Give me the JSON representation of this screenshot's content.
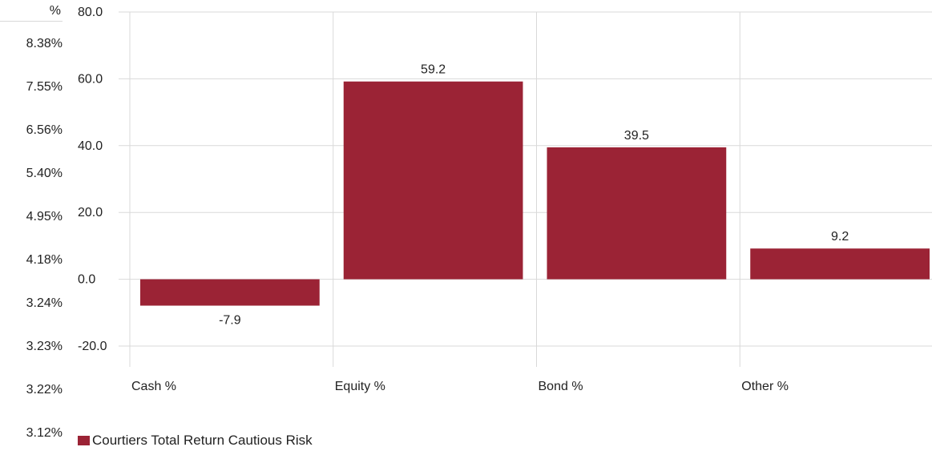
{
  "left_column": {
    "header": "%",
    "values": [
      "8.38%",
      "7.55%",
      "6.56%",
      "5.40%",
      "4.95%",
      "4.18%",
      "3.24%",
      "3.23%",
      "3.22%",
      "3.12%"
    ]
  },
  "colors": {
    "bar": "#9b2335",
    "grid": "#d9d9d9",
    "text": "#222222"
  },
  "chart_data": {
    "type": "bar",
    "categories": [
      "Cash %",
      "Equity %",
      "Bond %",
      "Other %"
    ],
    "series": [
      {
        "name": "Courtiers Total Return Cautious Risk",
        "values": [
          -7.9,
          59.2,
          39.5,
          9.2
        ]
      }
    ],
    "data_labels": [
      "-7.9",
      "59.2",
      "39.5",
      "9.2"
    ],
    "yticks": [
      "80.0",
      "60.0",
      "40.0",
      "20.0",
      "0.0",
      "-20.0"
    ],
    "ylim": [
      -20,
      80
    ],
    "grid": true,
    "legend": "bottom-left"
  }
}
